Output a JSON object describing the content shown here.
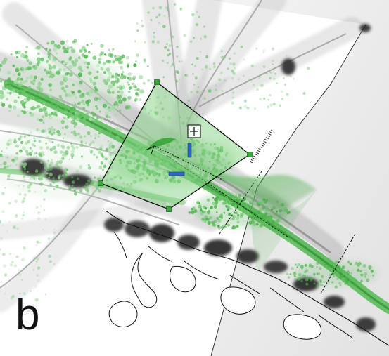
{
  "figure": {
    "panel_letter": "b"
  },
  "colors": {
    "background": "#ffffff",
    "ocean_gray": "#e8e8e8",
    "trajectory_gray": "#8c8c8c",
    "accent_green": "#3fb43f",
    "dark_green": "#1f8a1f",
    "handle_green": "#38a838",
    "blue_handle": "#2e65c8",
    "polygon_fill": "#8fd78f",
    "coastline": "#111111"
  },
  "icons": {
    "move_handle": "move-plus-icon",
    "vertex_handle": "vertex-square-icon",
    "rotate_handle": "rotation-sector-icon",
    "resize_handle": "resize-bar-icon"
  }
}
